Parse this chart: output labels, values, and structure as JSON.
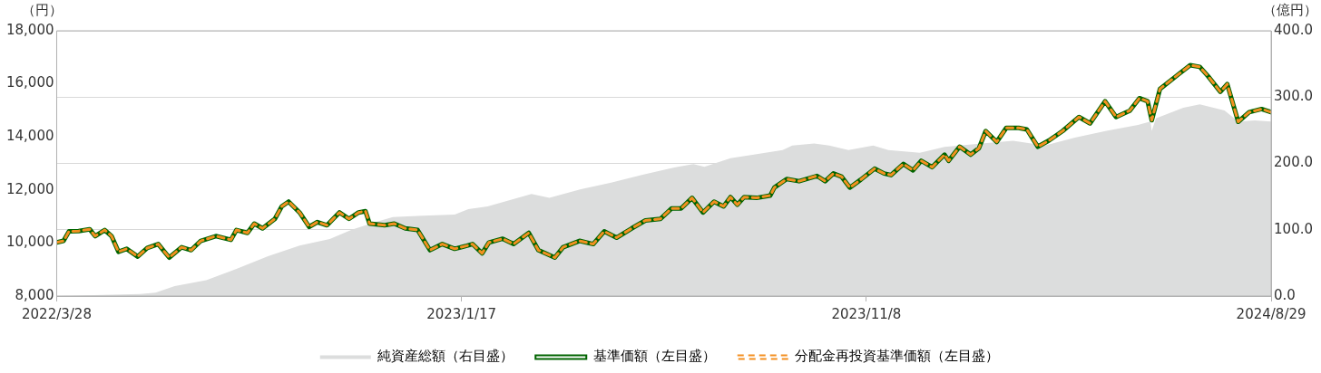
{
  "chart_data": {
    "type": "line",
    "ylabel": "（円）",
    "y2label": "（億円）",
    "xlim": [
      "2022-03-28",
      "2024-08-29"
    ],
    "xticks": [
      {
        "value": "2022-03-28",
        "label": "2022/3/28"
      },
      {
        "value": "2023-01-17",
        "label": "2023/1/17"
      },
      {
        "value": "2023-11-08",
        "label": "2023/11/8"
      },
      {
        "value": "2024-08-29",
        "label": "2024/8/29"
      }
    ],
    "ylim": [
      8000,
      18000
    ],
    "yticks": [
      {
        "value": 8000,
        "label": "8,000"
      },
      {
        "value": 10000,
        "label": "10,000"
      },
      {
        "value": 12000,
        "label": "12,000"
      },
      {
        "value": 14000,
        "label": "14,000"
      },
      {
        "value": 16000,
        "label": "16,000"
      },
      {
        "value": 18000,
        "label": "18,000"
      }
    ],
    "y2lim": [
      0,
      400
    ],
    "y2ticks": [
      {
        "value": 0,
        "label": "0.0"
      },
      {
        "value": 100,
        "label": "100.0"
      },
      {
        "value": 200,
        "label": "200.0"
      },
      {
        "value": 300,
        "label": "300.0"
      },
      {
        "value": 400,
        "label": "400.0"
      }
    ],
    "grid": "y",
    "legend": "bottom",
    "marker": "none",
    "series": [
      {
        "name": "純資産総額（右目盛）",
        "type": "area",
        "axis": "y2",
        "color": "#dcdddd",
        "x": [
          "2022-03-28",
          "2022-05-28",
          "2022-06-08",
          "2022-06-22",
          "2022-07-15",
          "2022-08-06",
          "2022-08-29",
          "2022-09-21",
          "2022-10-13",
          "2022-10-29",
          "2022-11-16",
          "2022-11-28",
          "2022-12-20",
          "2023-01-12",
          "2023-01-22",
          "2023-02-05",
          "2023-03-09",
          "2023-03-22",
          "2023-04-14",
          "2023-05-06",
          "2023-05-29",
          "2023-06-21",
          "2023-07-05",
          "2023-07-13",
          "2023-08-01",
          "2023-08-17",
          "2023-09-08",
          "2023-09-15",
          "2023-10-01",
          "2023-10-12",
          "2023-10-26",
          "2023-11-13",
          "2023-11-24",
          "2023-12-17",
          "2024-01-04",
          "2024-01-31",
          "2024-02-23",
          "2024-03-17",
          "2024-04-08",
          "2024-05-01",
          "2024-05-24",
          "2024-06-02",
          "2024-06-03",
          "2024-06-06",
          "2024-06-26",
          "2024-07-08",
          "2024-07-26",
          "2024-08-05",
          "2024-08-17",
          "2024-08-29"
        ],
        "values": [
          0,
          3,
          5,
          15,
          24,
          41,
          60,
          76,
          86,
          100,
          112,
          119,
          121,
          123,
          131,
          135,
          154,
          148,
          161,
          171,
          183,
          194,
          199,
          195,
          208,
          213,
          220,
          227,
          230,
          227,
          220,
          227,
          220,
          216,
          225,
          230,
          234,
          227,
          239,
          249,
          258,
          263,
          249,
          268,
          284,
          289,
          280,
          263,
          265,
          263
        ]
      },
      {
        "name": "基準価額（左目盛）",
        "line_style": "solid",
        "color": "#006400",
        "x": [
          "2022-03-28",
          "2022-04-02",
          "2022-04-06",
          "2022-04-13",
          "2022-04-21",
          "2022-04-25",
          "2022-05-02",
          "2022-05-07",
          "2022-05-12",
          "2022-05-18",
          "2022-05-26",
          "2022-06-02",
          "2022-06-10",
          "2022-06-18",
          "2022-06-27",
          "2022-07-04",
          "2022-07-11",
          "2022-07-22",
          "2022-08-02",
          "2022-08-06",
          "2022-08-14",
          "2022-08-19",
          "2022-08-25",
          "2022-09-03",
          "2022-09-08",
          "2022-09-13",
          "2022-09-21",
          "2022-09-28",
          "2022-10-04",
          "2022-10-11",
          "2022-10-20",
          "2022-10-27",
          "2022-11-03",
          "2022-11-08",
          "2022-11-11",
          "2022-11-22",
          "2022-11-29",
          "2022-12-07",
          "2022-12-16",
          "2022-12-25",
          "2023-01-03",
          "2023-01-12",
          "2023-01-21",
          "2023-01-25",
          "2023-02-01",
          "2023-02-06",
          "2023-02-16",
          "2023-02-24",
          "2023-03-07",
          "2023-03-14",
          "2023-03-26",
          "2023-04-01",
          "2023-04-13",
          "2023-04-23",
          "2023-05-01",
          "2023-05-10",
          "2023-05-21",
          "2023-05-31",
          "2023-06-11",
          "2023-06-19",
          "2023-06-26",
          "2023-07-04",
          "2023-07-12",
          "2023-07-20",
          "2023-07-27",
          "2023-08-01",
          "2023-08-06",
          "2023-08-11",
          "2023-08-20",
          "2023-08-30",
          "2023-09-02",
          "2023-09-11",
          "2023-09-20",
          "2023-10-03",
          "2023-10-09",
          "2023-10-15",
          "2023-10-21",
          "2023-10-27",
          "2023-11-04",
          "2023-11-14",
          "2023-11-21",
          "2023-11-26",
          "2023-12-05",
          "2023-12-12",
          "2023-12-18",
          "2023-12-26",
          "2024-01-04",
          "2024-01-07",
          "2024-01-15",
          "2024-01-23",
          "2024-01-29",
          "2024-02-03",
          "2024-02-11",
          "2024-02-18",
          "2024-02-27",
          "2024-03-04",
          "2024-03-12",
          "2024-03-20",
          "2024-03-30",
          "2024-04-11",
          "2024-04-19",
          "2024-04-30",
          "2024-05-08",
          "2024-05-18",
          "2024-05-25",
          "2024-05-31",
          "2024-06-03",
          "2024-06-09",
          "2024-06-22",
          "2024-07-01",
          "2024-07-08",
          "2024-07-14",
          "2024-07-23",
          "2024-07-28",
          "2024-08-05",
          "2024-08-13",
          "2024-08-22",
          "2024-08-29"
        ],
        "values": [
          10020,
          10080,
          10440,
          10450,
          10520,
          10260,
          10490,
          10260,
          9670,
          9780,
          9490,
          9810,
          9960,
          9450,
          9840,
          9730,
          10080,
          10260,
          10120,
          10490,
          10380,
          10730,
          10550,
          10910,
          11380,
          11560,
          11150,
          10610,
          10790,
          10670,
          11150,
          10910,
          11150,
          11200,
          10730,
          10670,
          10730,
          10550,
          10490,
          9730,
          9960,
          9780,
          9900,
          9960,
          9610,
          10020,
          10160,
          9960,
          10380,
          9730,
          9450,
          9840,
          10080,
          9960,
          10440,
          10200,
          10550,
          10850,
          10910,
          11300,
          11300,
          11700,
          11150,
          11560,
          11380,
          11730,
          11440,
          11730,
          11700,
          11790,
          12090,
          12410,
          12330,
          12530,
          12330,
          12620,
          12500,
          12090,
          12390,
          12800,
          12620,
          12560,
          12980,
          12740,
          13100,
          12860,
          13330,
          13100,
          13630,
          13330,
          13570,
          14220,
          13810,
          14340,
          14340,
          14280,
          13630,
          13860,
          14220,
          14750,
          14510,
          15340,
          14750,
          14990,
          15460,
          15340,
          14630,
          15810,
          16340,
          16700,
          16640,
          16290,
          15700,
          15990,
          14570,
          14930,
          15050,
          14930
        ]
      },
      {
        "name": "分配金再投資基準価額（左目盛）",
        "line_style": "dashed",
        "color": "#f39020",
        "x": [
          "2022-03-28",
          "2022-04-02",
          "2022-04-06",
          "2022-04-13",
          "2022-04-21",
          "2022-04-25",
          "2022-05-02",
          "2022-05-07",
          "2022-05-12",
          "2022-05-18",
          "2022-05-26",
          "2022-06-02",
          "2022-06-10",
          "2022-06-18",
          "2022-06-27",
          "2022-07-04",
          "2022-07-11",
          "2022-07-22",
          "2022-08-02",
          "2022-08-06",
          "2022-08-14",
          "2022-08-19",
          "2022-08-25",
          "2022-09-03",
          "2022-09-08",
          "2022-09-13",
          "2022-09-21",
          "2022-09-28",
          "2022-10-04",
          "2022-10-11",
          "2022-10-20",
          "2022-10-27",
          "2022-11-03",
          "2022-11-08",
          "2022-11-11",
          "2022-11-22",
          "2022-11-29",
          "2022-12-07",
          "2022-12-16",
          "2022-12-25",
          "2023-01-03",
          "2023-01-12",
          "2023-01-21",
          "2023-01-25",
          "2023-02-01",
          "2023-02-06",
          "2023-02-16",
          "2023-02-24",
          "2023-03-07",
          "2023-03-14",
          "2023-03-26",
          "2023-04-01",
          "2023-04-13",
          "2023-04-23",
          "2023-05-01",
          "2023-05-10",
          "2023-05-21",
          "2023-05-31",
          "2023-06-11",
          "2023-06-19",
          "2023-06-26",
          "2023-07-04",
          "2023-07-12",
          "2023-07-20",
          "2023-07-27",
          "2023-08-01",
          "2023-08-06",
          "2023-08-11",
          "2023-08-20",
          "2023-08-30",
          "2023-09-02",
          "2023-09-11",
          "2023-09-20",
          "2023-10-03",
          "2023-10-09",
          "2023-10-15",
          "2023-10-21",
          "2023-10-27",
          "2023-11-04",
          "2023-11-14",
          "2023-11-21",
          "2023-11-26",
          "2023-12-05",
          "2023-12-12",
          "2023-12-18",
          "2023-12-26",
          "2024-01-04",
          "2024-01-07",
          "2024-01-15",
          "2024-01-23",
          "2024-01-29",
          "2024-02-03",
          "2024-02-11",
          "2024-02-18",
          "2024-02-27",
          "2024-03-04",
          "2024-03-12",
          "2024-03-20",
          "2024-03-30",
          "2024-04-11",
          "2024-04-19",
          "2024-04-30",
          "2024-05-08",
          "2024-05-18",
          "2024-05-25",
          "2024-05-31",
          "2024-06-03",
          "2024-06-09",
          "2024-06-22",
          "2024-07-01",
          "2024-07-08",
          "2024-07-14",
          "2024-07-23",
          "2024-07-28",
          "2024-08-05",
          "2024-08-13",
          "2024-08-22",
          "2024-08-29"
        ],
        "values": [
          10020,
          10080,
          10440,
          10450,
          10520,
          10260,
          10490,
          10260,
          9670,
          9780,
          9490,
          9810,
          9960,
          9450,
          9840,
          9730,
          10080,
          10260,
          10120,
          10490,
          10380,
          10730,
          10550,
          10910,
          11380,
          11560,
          11150,
          10610,
          10790,
          10670,
          11150,
          10910,
          11150,
          11200,
          10730,
          10670,
          10730,
          10550,
          10490,
          9730,
          9960,
          9780,
          9900,
          9960,
          9610,
          10020,
          10160,
          9960,
          10380,
          9730,
          9450,
          9840,
          10080,
          9960,
          10440,
          10200,
          10550,
          10850,
          10910,
          11300,
          11300,
          11700,
          11150,
          11560,
          11380,
          11730,
          11440,
          11730,
          11700,
          11790,
          12090,
          12410,
          12330,
          12530,
          12330,
          12620,
          12500,
          12090,
          12390,
          12800,
          12620,
          12560,
          12980,
          12740,
          13100,
          12860,
          13330,
          13100,
          13630,
          13330,
          13570,
          14220,
          13810,
          14340,
          14340,
          14280,
          13630,
          13860,
          14220,
          14750,
          14510,
          15340,
          14750,
          14990,
          15460,
          15340,
          14630,
          15810,
          16340,
          16700,
          16640,
          16290,
          15700,
          15990,
          14570,
          14930,
          15050,
          14930
        ]
      }
    ]
  }
}
